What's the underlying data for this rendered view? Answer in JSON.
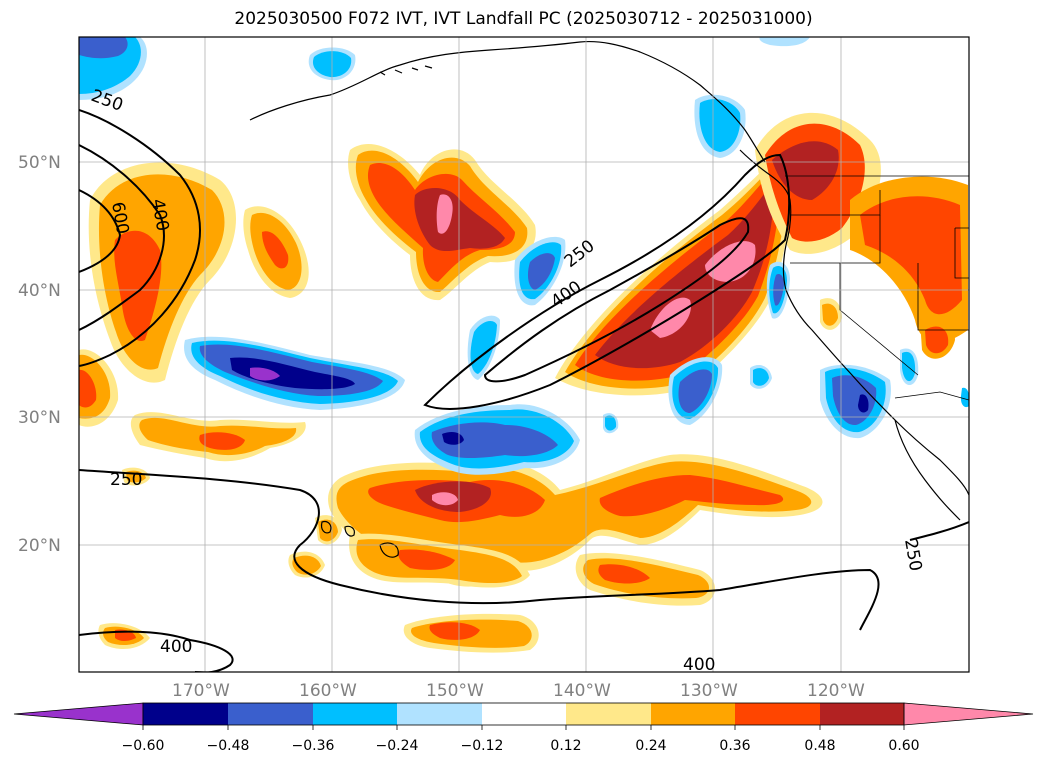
{
  "title": "2025030500 F072 IVT, IVT Landfall PC (2025030712 - 2025031000)",
  "map": {
    "lon_range": [
      -180,
      -110
    ],
    "lat_range": [
      10,
      60
    ],
    "lat_ticks": [
      "20°N",
      "30°N",
      "40°N",
      "50°N"
    ],
    "lon_ticks": [
      "170°W",
      "160°W",
      "150°W",
      "140°W",
      "130°W",
      "120°W"
    ],
    "grid": true,
    "contour_labels": [
      "250",
      "400",
      "600",
      "400",
      "250",
      "400",
      "250",
      "400",
      "250"
    ]
  },
  "colorbar": {
    "ticks": [
      "−0.60",
      "−0.48",
      "−0.36",
      "−0.24",
      "−0.12",
      "0.12",
      "0.24",
      "0.36",
      "0.48",
      "0.60"
    ],
    "colors": [
      "#9932cc",
      "#00008b",
      "#3a5fcd",
      "#00bfff",
      "#b0e2ff",
      "#ffffff",
      "#ffe88a",
      "#ffa500",
      "#ff4500",
      "#b22222",
      "#ff88aa"
    ],
    "extend": "both"
  },
  "fills": {
    "pink": "#ff88aa",
    "darkred": "#b22222",
    "orangered": "#ff4500",
    "orange": "#ffa500",
    "lightyellow": "#ffe88a",
    "lightblue": "#b0e2ff",
    "deepskyblue": "#00bfff",
    "royalblue": "#3a5fcd",
    "navy": "#00008b",
    "purple": "#9932cc"
  }
}
